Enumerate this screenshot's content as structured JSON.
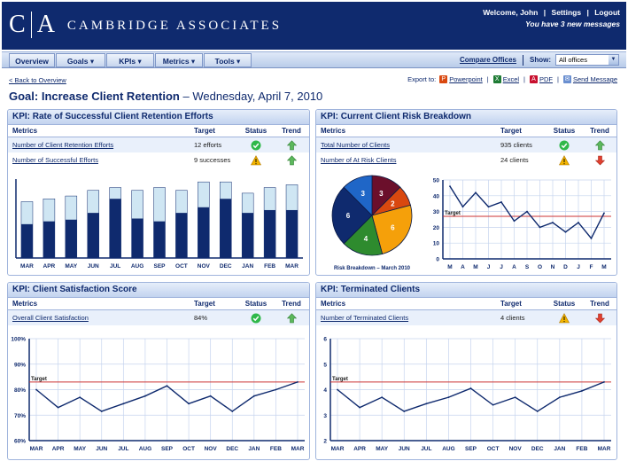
{
  "header": {
    "logo_mark_left": "C",
    "logo_mark_right": "A",
    "company": "CAMBRIDGE ASSOCIATES",
    "welcome": "Welcome, John",
    "settings": "Settings",
    "logout": "Logout",
    "notice": "You have 3 new messages"
  },
  "nav": {
    "items": [
      "Overview",
      "Goals ▾",
      "KPIs ▾",
      "Metrics ▾",
      "Tools ▾"
    ],
    "compare": "Compare Offices",
    "show_label": "Show:",
    "show_value": "All offices"
  },
  "back_link": "< Back to Overview",
  "export": {
    "label": "Export to:",
    "powerpoint": "Powerpoint",
    "excel": "Excel",
    "pdf": "PDF",
    "send": "Send Message"
  },
  "goal": {
    "title": "Goal: Increase Client Retention",
    "date": "– Wednesday, April 7, 2010"
  },
  "columns": {
    "metrics": "Metrics",
    "target": "Target",
    "status": "Status",
    "trend": "Trend"
  },
  "status_colors": {
    "ok": "#2fb84a",
    "warn": "#f2b400",
    "up": "#5cb85c",
    "down": "#e04030",
    "accent": "#0f2a6e",
    "target_line": "#cc3333"
  },
  "panels": {
    "p1": {
      "title": "KPI: Rate of Successful Client Retention Efforts",
      "rows": [
        {
          "metric": "Number of Client Retention Efforts",
          "target": "12 efforts",
          "status": "ok",
          "trend": "up"
        },
        {
          "metric": "Number of Successful Efforts",
          "target": "9 successes",
          "status": "warn",
          "trend": "up"
        }
      ]
    },
    "p2": {
      "title": "KPI: Current Client Risk Breakdown",
      "rows": [
        {
          "metric": "Total Number of Clients",
          "target": "935 clients",
          "status": "ok",
          "trend": "up"
        },
        {
          "metric": "Number of At Risk Clients",
          "target": "24 clients",
          "status": "warn",
          "trend": "down"
        }
      ]
    },
    "p3": {
      "title": "KPI: Client Satisfaction Score",
      "rows": [
        {
          "metric": "Overall Client Satisfaction",
          "target": "84%",
          "status": "ok",
          "trend": "up"
        }
      ]
    },
    "p4": {
      "title": "KPI: Terminated Clients",
      "rows": [
        {
          "metric": "Number of Terminated Clients",
          "target": "4 clients",
          "status": "warn",
          "trend": "down"
        }
      ]
    }
  },
  "chart_data": [
    {
      "type": "bar",
      "categories": [
        "MAR",
        "APR",
        "MAY",
        "JUN",
        "JUL",
        "AUG",
        "SEP",
        "OCT",
        "NOV",
        "DEC",
        "JAN",
        "FEB",
        "MAR"
      ],
      "series": [
        {
          "values": [
            6,
            6.5,
            6.8,
            8,
            10.5,
            7,
            6.5,
            8,
            9,
            10.5,
            8,
            8.5,
            8.5
          ]
        },
        {
          "values": [
            10,
            10.5,
            11,
            12,
            12.5,
            12,
            12.5,
            12,
            13.5,
            13.5,
            11.5,
            12.5,
            13
          ]
        }
      ],
      "ylim": [
        0,
        14
      ],
      "colors": [
        "#0f2a6e",
        "#cfe6f3"
      ]
    },
    {
      "type": "pie",
      "title": "Risk Breakdown – March 2010",
      "slices": [
        {
          "label": "3",
          "value": 3,
          "color": "#6b0f2b"
        },
        {
          "label": "2",
          "value": 2,
          "color": "#d9480f"
        },
        {
          "label": "6",
          "value": 6,
          "color": "#f5a00a"
        },
        {
          "label": "4",
          "value": 4,
          "color": "#2e8b2e"
        },
        {
          "label": "6",
          "value": 6,
          "color": "#0f2a6e"
        },
        {
          "label": "3",
          "value": 3,
          "color": "#1f66c7"
        }
      ]
    },
    {
      "type": "line",
      "categories": [
        "M",
        "A",
        "M",
        "J",
        "J",
        "A",
        "S",
        "O",
        "N",
        "D",
        "J",
        "F",
        "M"
      ],
      "values": [
        46,
        33,
        42,
        33,
        36,
        24,
        30,
        20,
        23,
        17,
        23,
        13,
        29
      ],
      "ylim": [
        0,
        50
      ],
      "yticks": [
        0,
        10,
        20,
        30,
        40,
        50
      ],
      "target": 27,
      "target_label": "Target"
    },
    {
      "type": "line",
      "categories": [
        "MAR",
        "APR",
        "MAY",
        "JUN",
        "JUL",
        "AUG",
        "SEP",
        "OCT",
        "NOV",
        "DEC",
        "JAN",
        "FEB",
        "MAR"
      ],
      "values": [
        80,
        73,
        77,
        71.5,
        74.5,
        77.5,
        81.5,
        74.5,
        77.5,
        71.5,
        77.5,
        80,
        83
      ],
      "ylim": [
        60,
        100
      ],
      "yticks": [
        "60%",
        "70%",
        "80%",
        "90%",
        "100%"
      ],
      "target": 83,
      "target_label": "Target"
    },
    {
      "type": "line",
      "categories": [
        "MAR",
        "APR",
        "MAY",
        "JUN",
        "JUL",
        "AUG",
        "SEP",
        "OCT",
        "NOV",
        "DEC",
        "JAN",
        "FEB",
        "MAR"
      ],
      "values": [
        4,
        3.3,
        3.7,
        3.15,
        3.45,
        3.7,
        4.05,
        3.4,
        3.7,
        3.15,
        3.7,
        3.95,
        4.3
      ],
      "ylim": [
        2,
        6
      ],
      "yticks": [
        2,
        3,
        4,
        5,
        6
      ],
      "target": 4.3,
      "target_label": "Target"
    }
  ]
}
